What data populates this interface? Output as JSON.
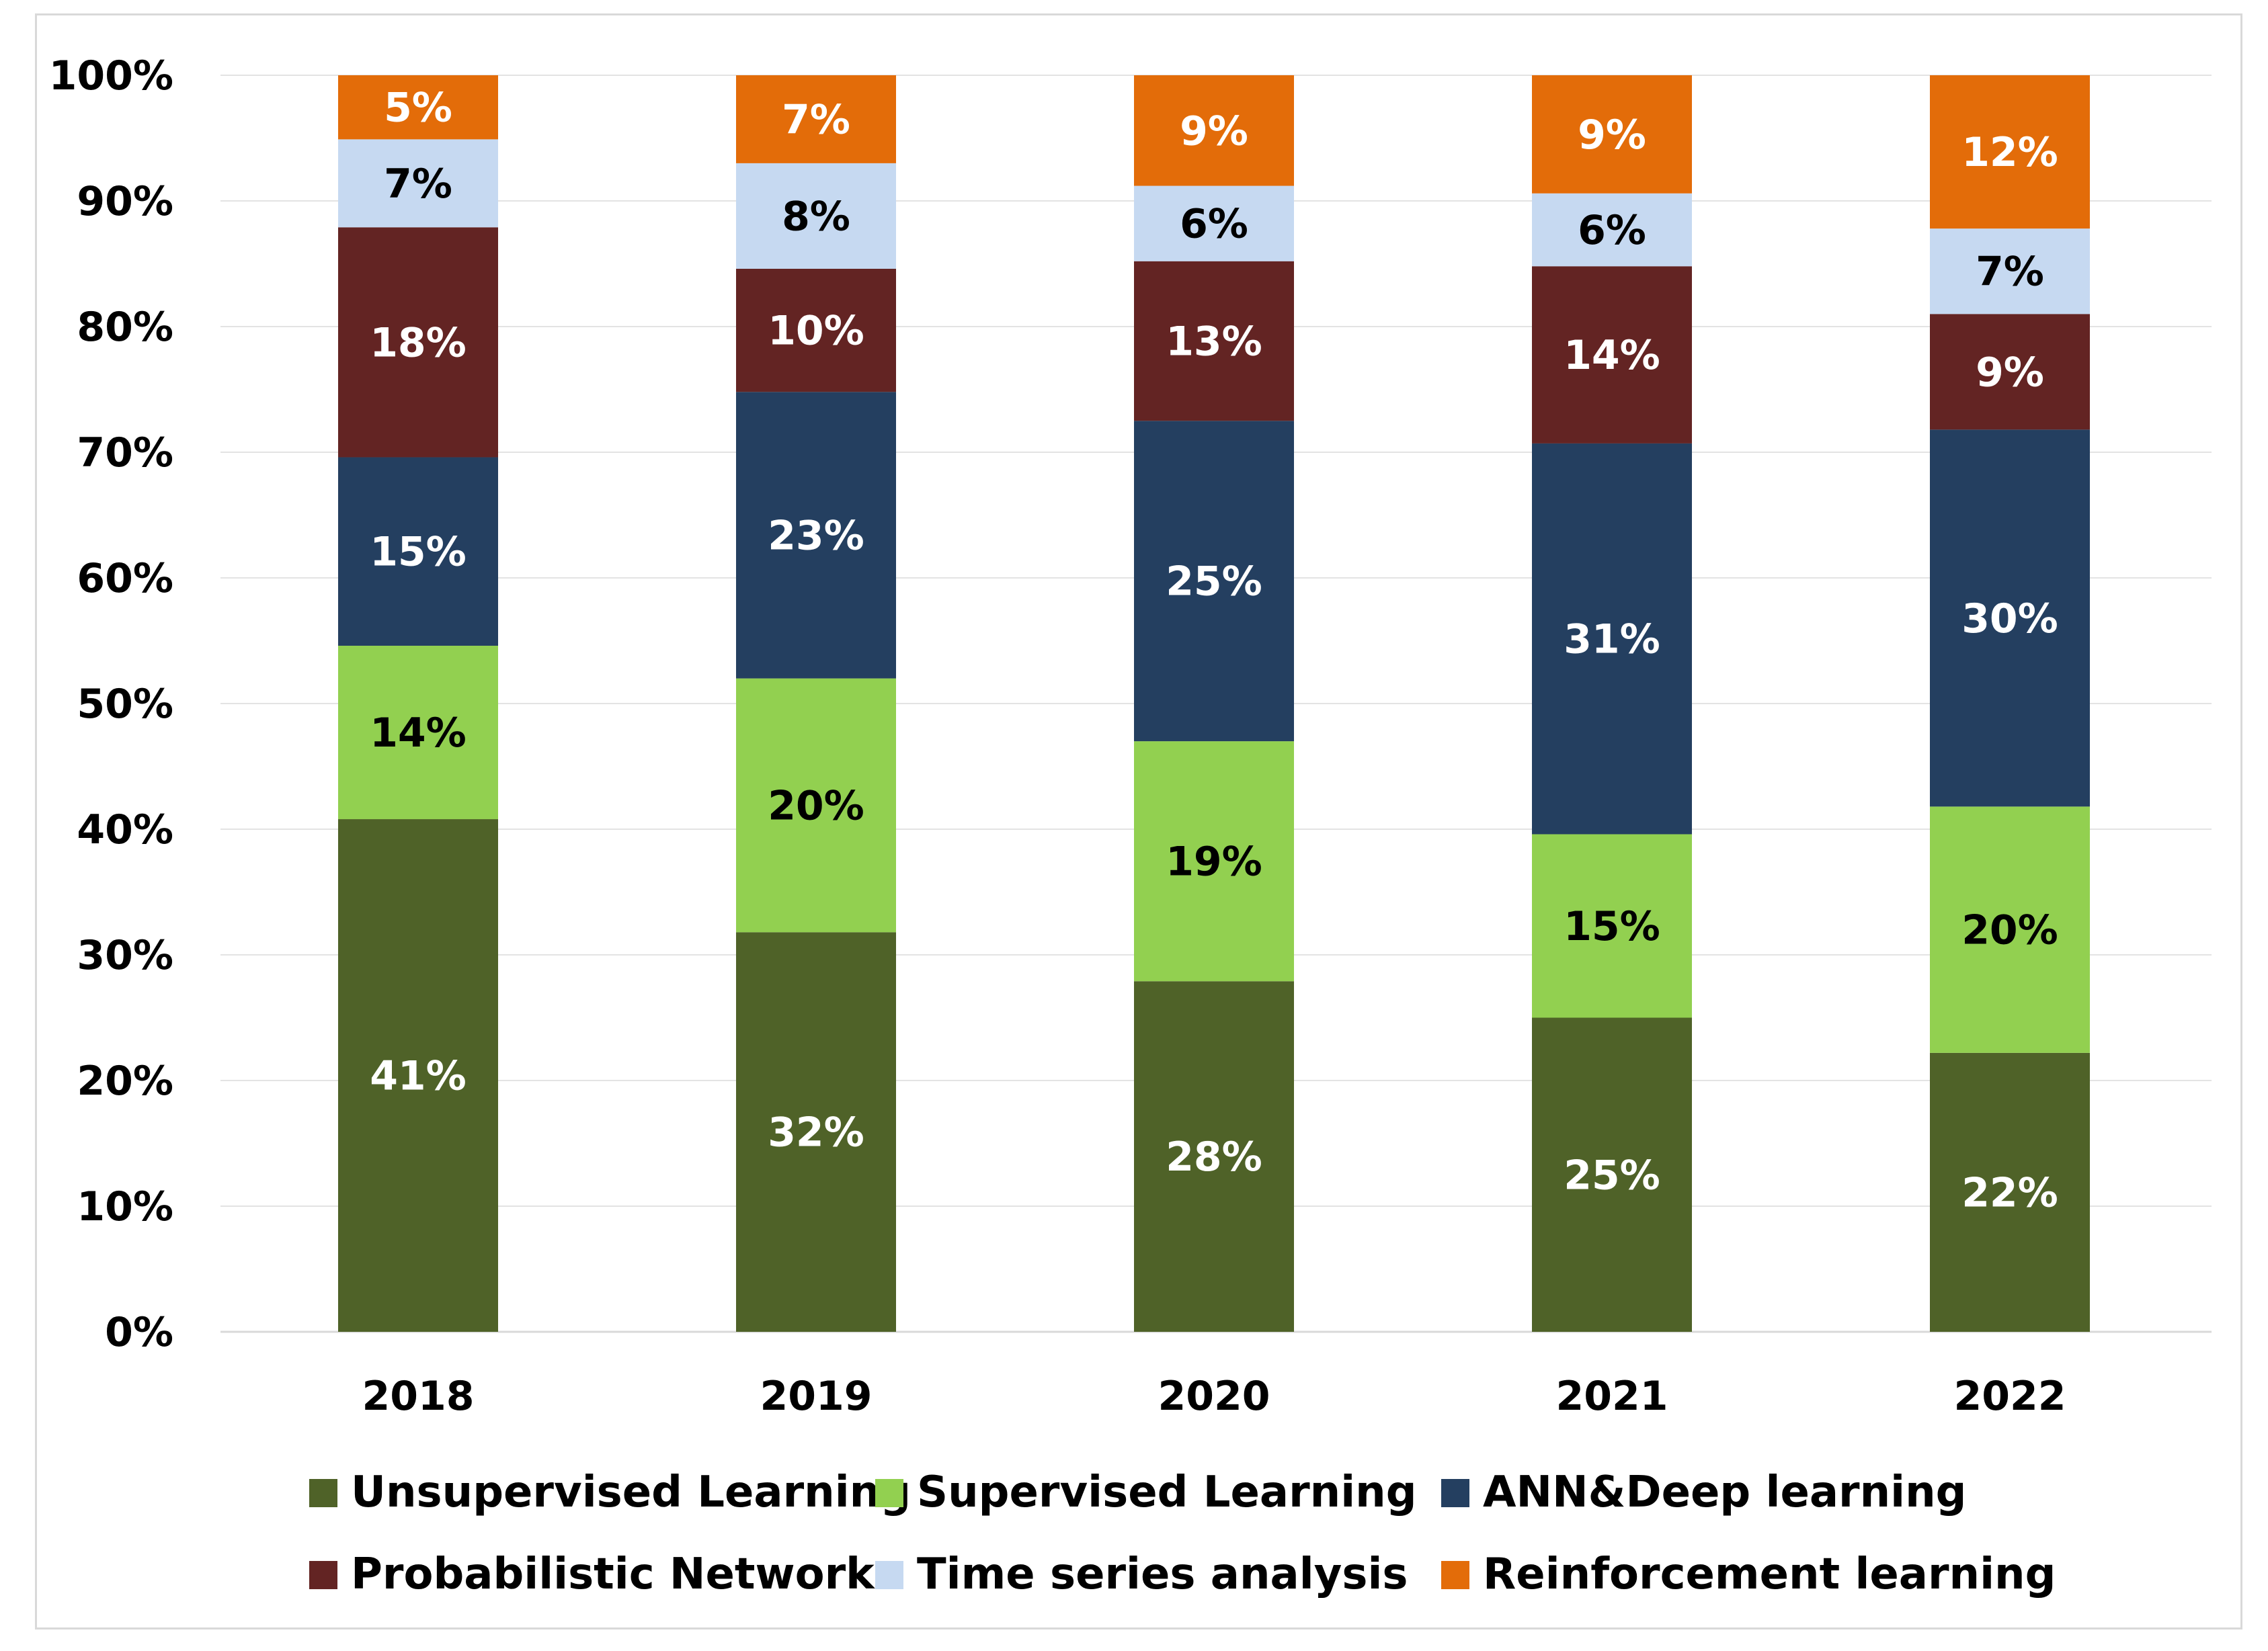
{
  "chart_data": {
    "type": "bar",
    "stacked": true,
    "categories": [
      "2018",
      "2019",
      "2020",
      "2021",
      "2022"
    ],
    "ylim": [
      0,
      100
    ],
    "yticks": [
      "0%",
      "10%",
      "20%",
      "30%",
      "40%",
      "50%",
      "60%",
      "70%",
      "80%",
      "90%",
      "100%"
    ],
    "grid": true,
    "legend_position": "bottom",
    "series": [
      {
        "name": "Unsupervised Learning",
        "color": "#4f6228",
        "label_color": "#ffffff",
        "values": [
          40.8,
          31.8,
          27.9,
          25.0,
          22.2
        ],
        "labels": [
          "41%",
          "32%",
          "28%",
          "25%",
          "22%"
        ]
      },
      {
        "name": "Supervised Learning",
        "color": "#92d050",
        "label_color": "#000000",
        "values": [
          13.8,
          20.2,
          19.1,
          14.6,
          19.6
        ],
        "labels": [
          "14%",
          "20%",
          "19%",
          "15%",
          "20%"
        ]
      },
      {
        "name": "ANN&Deep learning",
        "color": "#243f60",
        "label_color": "#ffffff",
        "values": [
          15.0,
          22.8,
          25.5,
          31.1,
          30.0
        ],
        "labels": [
          "15%",
          "23%",
          "25%",
          "31%",
          "30%"
        ]
      },
      {
        "name": "Probabilistic Networks",
        "color": "#632423",
        "label_color": "#ffffff",
        "values": [
          18.3,
          9.8,
          12.7,
          14.1,
          9.2
        ],
        "labels": [
          "18%",
          "10%",
          "13%",
          "14%",
          "9%"
        ]
      },
      {
        "name": "Time series analysis",
        "color": "#c6d9f1",
        "label_color": "#000000",
        "values": [
          7.0,
          8.4,
          6.0,
          5.8,
          6.8
        ],
        "labels": [
          "7%",
          "8%",
          "6%",
          "6%",
          "7%"
        ]
      },
      {
        "name": "Reinforcement learning",
        "color": "#e36c09",
        "label_color": "#ffffff",
        "values": [
          5.1,
          7.0,
          8.8,
          9.4,
          12.2
        ],
        "labels": [
          "5%",
          "7%",
          "9%",
          "9%",
          "12%"
        ]
      }
    ]
  }
}
